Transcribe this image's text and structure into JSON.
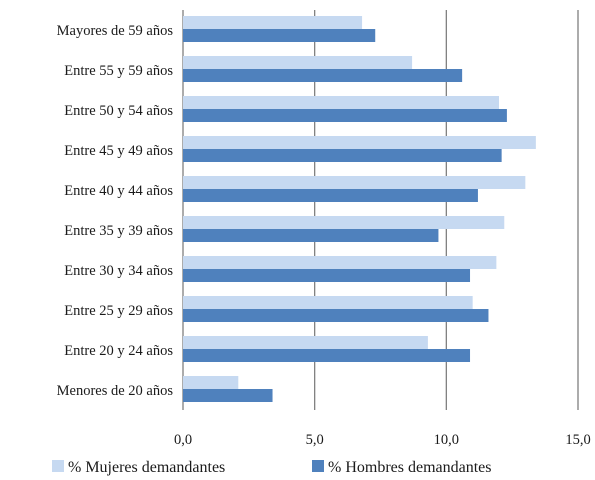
{
  "chart_data": {
    "type": "bar",
    "orientation": "horizontal",
    "categories": [
      "Mayores de 59 años",
      "Entre 55 y 59 años",
      "Entre 50 y 54 años",
      "Entre 45 y 49 años",
      "Entre 40 y 44 años",
      "Entre 35 y 39 años",
      "Entre 30 y 34 años",
      "Entre 25 y 29 años",
      "Entre 20 y 24 años",
      "Menores de 20 años"
    ],
    "series": [
      {
        "name": "% Mujeres demandantes",
        "color": "#c6d9f1",
        "values": [
          6.8,
          8.7,
          12.0,
          13.4,
          13.0,
          12.2,
          11.9,
          11.0,
          9.3,
          2.1
        ]
      },
      {
        "name": "% Hombres demandantes",
        "color": "#4f81bd",
        "values": [
          7.3,
          10.6,
          12.3,
          12.1,
          11.2,
          9.7,
          10.9,
          11.6,
          10.9,
          3.4
        ]
      }
    ],
    "xlim": [
      0,
      15
    ],
    "x_ticks": [
      "0,0",
      "5,0",
      "10,0",
      "15,0"
    ],
    "grid": "vertical",
    "legend": "bottom",
    "title": "",
    "xlabel": "",
    "ylabel": ""
  }
}
